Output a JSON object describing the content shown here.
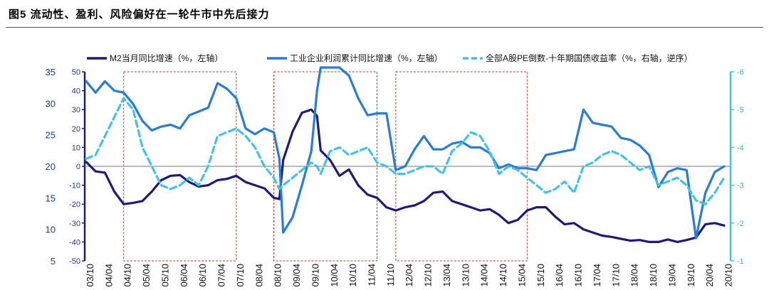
{
  "figure": {
    "title": "图5  流动性、盈利、风险偏好在一轮牛市中先后接力"
  },
  "chart_data": {
    "type": "line",
    "colors": {
      "m2": "#1f1a7a",
      "profit": "#2a7bd4",
      "pe": "#45c0ea",
      "axis_left_inner": "#1f1a7a",
      "axis_right": "#45c0ea",
      "box": "#c0392b"
    },
    "legend": [
      "M2当月同比增速（%，左轴）",
      "工业企业利润累计同比增速（%，左轴）",
      "全部A股PE倒数-十年期国债收益率（%，右轴，逆序）"
    ],
    "left_axis_outer": {
      "ticks": [
        "35",
        "30",
        "25",
        "20",
        "15",
        "10",
        "5"
      ],
      "range": [
        5,
        35
      ]
    },
    "left_axis_inner": {
      "ticks": [
        "50",
        "40",
        "30",
        "20",
        "10",
        "0",
        "-10",
        "-20",
        "-30",
        "-40",
        "-50"
      ],
      "range": [
        -50,
        50
      ]
    },
    "right_axis": {
      "ticks": [
        "-6",
        "-5",
        "-4",
        "-3",
        "-2",
        "-1"
      ],
      "range": [
        -6,
        -1
      ],
      "inverted": true
    },
    "x_labels": [
      "03/10",
      "04/04",
      "04/10",
      "05/04",
      "05/10",
      "06/04",
      "06/10",
      "07/04",
      "07/10",
      "08/04",
      "08/10",
      "09/04",
      "09/10",
      "10/04",
      "10/10",
      "11/04",
      "11/10",
      "12/04",
      "12/10",
      "13/04",
      "13/10",
      "14/04",
      "14/10",
      "15/04",
      "15/10",
      "16/04",
      "16/10",
      "17/04",
      "17/10",
      "18/04",
      "18/10",
      "19/04",
      "19/10",
      "20/04",
      "20/10"
    ],
    "boxes": [
      {
        "x_start": 2004.75,
        "x_end": 2007.75
      },
      {
        "x_start": 2008.75,
        "x_end": 2011.5
      },
      {
        "x_start": 2012.0,
        "x_end": 2015.5
      }
    ],
    "series": [
      {
        "name": "M2当月同比增速（%，左轴）",
        "axis": "left_outer",
        "x": [
          2003.75,
          2004.0,
          2004.25,
          2004.5,
          2004.75,
          2005.0,
          2005.25,
          2005.5,
          2005.75,
          2006.0,
          2006.25,
          2006.5,
          2006.75,
          2007.0,
          2007.25,
          2007.5,
          2007.75,
          2008.0,
          2008.25,
          2008.5,
          2008.75,
          2008.9,
          2009.0,
          2009.25,
          2009.5,
          2009.75,
          2009.9,
          2010.0,
          2010.25,
          2010.5,
          2010.75,
          2011.0,
          2011.25,
          2011.5,
          2011.75,
          2012.0,
          2012.25,
          2012.5,
          2012.75,
          2013.0,
          2013.25,
          2013.5,
          2013.75,
          2014.0,
          2014.25,
          2014.5,
          2014.75,
          2015.0,
          2015.25,
          2015.5,
          2015.75,
          2016.0,
          2016.25,
          2016.5,
          2016.75,
          2017.0,
          2017.25,
          2017.5,
          2017.75,
          2018.0,
          2018.25,
          2018.5,
          2018.75,
          2019.0,
          2019.25,
          2019.5,
          2019.75,
          2020.0,
          2020.25,
          2020.5,
          2020.75
        ],
        "values": [
          20.7,
          19.2,
          19.0,
          16.0,
          14.0,
          14.2,
          14.5,
          16.0,
          17.8,
          18.5,
          18.6,
          17.5,
          16.8,
          17.0,
          17.8,
          18.0,
          18.5,
          17.5,
          17.0,
          16.5,
          15.0,
          14.8,
          21.0,
          25.5,
          28.5,
          29.0,
          28.0,
          22.5,
          21.0,
          18.5,
          19.5,
          17.0,
          15.5,
          15.0,
          13.5,
          13.0,
          13.5,
          13.8,
          14.5,
          15.8,
          16.0,
          14.5,
          14.0,
          13.5,
          13.0,
          13.2,
          12.3,
          11.0,
          11.5,
          13.0,
          13.5,
          13.5,
          12.0,
          10.8,
          11.0,
          10.0,
          9.5,
          9.0,
          8.8,
          8.5,
          8.2,
          8.3,
          8.0,
          8.0,
          8.4,
          8.0,
          8.3,
          8.7,
          10.8,
          11.0,
          10.6
        ]
      },
      {
        "name": "工业企业利润累计同比增速（%，左轴）",
        "axis": "left_inner",
        "x": [
          2003.75,
          2004.0,
          2004.25,
          2004.5,
          2004.75,
          2005.0,
          2005.25,
          2005.5,
          2005.75,
          2006.0,
          2006.25,
          2006.5,
          2006.75,
          2007.0,
          2007.25,
          2007.5,
          2007.75,
          2008.0,
          2008.25,
          2008.5,
          2008.75,
          2008.9,
          2009.0,
          2009.25,
          2009.5,
          2009.75,
          2009.9,
          2010.0,
          2010.25,
          2010.5,
          2010.75,
          2011.0,
          2011.25,
          2011.5,
          2011.75,
          2012.0,
          2012.25,
          2012.5,
          2012.75,
          2013.0,
          2013.25,
          2013.5,
          2013.75,
          2014.0,
          2014.25,
          2014.5,
          2014.75,
          2015.0,
          2015.25,
          2015.5,
          2015.75,
          2016.0,
          2016.25,
          2016.5,
          2016.75,
          2017.0,
          2017.25,
          2017.5,
          2017.75,
          2018.0,
          2018.25,
          2018.5,
          2018.75,
          2019.0,
          2019.25,
          2019.5,
          2019.75,
          2020.0,
          2020.25,
          2020.5,
          2020.75
        ],
        "values": [
          45.0,
          39.0,
          45.0,
          40.0,
          39.0,
          33.0,
          24.0,
          19.0,
          21.0,
          22.0,
          20.0,
          27.0,
          29.0,
          31.0,
          44.0,
          41.0,
          36.0,
          20.0,
          17.0,
          20.0,
          18.0,
          4.0,
          -35.0,
          -27.0,
          -10.0,
          8.0,
          40.0,
          65.0,
          58.0,
          55.0,
          48.0,
          36.0,
          27.0,
          28.0,
          28.0,
          -2.0,
          0.0,
          9.0,
          16.0,
          9.0,
          9.0,
          12.0,
          13.0,
          10.0,
          10.0,
          7.0,
          -1.0,
          1.0,
          -1.0,
          -1.0,
          -2.0,
          6.0,
          7.0,
          8.0,
          9.0,
          30.0,
          23.0,
          22.0,
          21.0,
          15.0,
          14.0,
          11.0,
          6.0,
          -11.0,
          -3.0,
          -1.0,
          -2.0,
          -38.0,
          -14.0,
          -3.0,
          0.0
        ]
      },
      {
        "name": "全部A股PE倒数-十年期国债收益率（%，右轴，逆序）",
        "axis": "right",
        "x": [
          2003.75,
          2004.0,
          2004.25,
          2004.5,
          2004.75,
          2005.0,
          2005.25,
          2005.5,
          2005.75,
          2006.0,
          2006.25,
          2006.5,
          2006.75,
          2007.0,
          2007.25,
          2007.5,
          2007.75,
          2008.0,
          2008.25,
          2008.5,
          2008.75,
          2008.9,
          2009.0,
          2009.25,
          2009.5,
          2009.75,
          2009.9,
          2010.0,
          2010.25,
          2010.5,
          2010.75,
          2011.0,
          2011.25,
          2011.5,
          2011.75,
          2012.0,
          2012.25,
          2012.5,
          2012.75,
          2013.0,
          2013.25,
          2013.5,
          2013.75,
          2014.0,
          2014.25,
          2014.5,
          2014.75,
          2015.0,
          2015.25,
          2015.5,
          2015.75,
          2016.0,
          2016.25,
          2016.5,
          2016.75,
          2017.0,
          2017.25,
          2017.5,
          2017.75,
          2018.0,
          2018.25,
          2018.5,
          2018.75,
          2019.0,
          2019.25,
          2019.5,
          2019.75,
          2020.0,
          2020.25,
          2020.5,
          2020.75
        ],
        "values": [
          -3.7,
          -3.8,
          -4.3,
          -4.8,
          -5.3,
          -5.0,
          -4.0,
          -3.5,
          -3.0,
          -2.9,
          -3.0,
          -3.2,
          -3.0,
          -3.5,
          -4.3,
          -4.4,
          -4.5,
          -4.3,
          -4.0,
          -3.5,
          -3.2,
          -2.9,
          -3.0,
          -3.2,
          -3.4,
          -3.6,
          -3.5,
          -3.3,
          -3.9,
          -4.0,
          -3.8,
          -3.9,
          -4.0,
          -3.6,
          -3.5,
          -3.3,
          -3.3,
          -3.4,
          -3.5,
          -3.5,
          -3.3,
          -3.9,
          -4.1,
          -4.4,
          -4.3,
          -3.9,
          -3.3,
          -3.5,
          -3.4,
          -3.2,
          -3.0,
          -2.8,
          -2.9,
          -3.1,
          -2.8,
          -3.5,
          -3.6,
          -3.8,
          -3.9,
          -3.8,
          -3.6,
          -3.4,
          -3.5,
          -3.0,
          -3.1,
          -3.2,
          -3.0,
          -2.6,
          -2.5,
          -2.8,
          -3.2
        ]
      }
    ]
  }
}
